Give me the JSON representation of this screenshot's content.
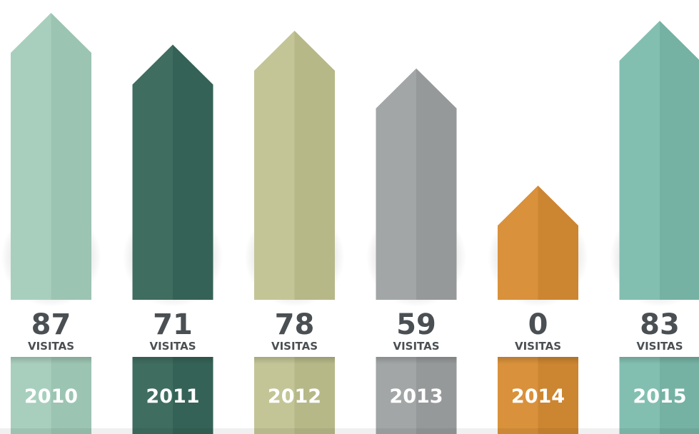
{
  "chart_data": {
    "type": "bar",
    "title": "",
    "categories": [
      "2010",
      "2011",
      "2012",
      "2013",
      "2014",
      "2015"
    ],
    "values": [
      87,
      71,
      78,
      59,
      0,
      83
    ],
    "value_labels": [
      "87",
      "71",
      "78",
      "59",
      "0",
      "83"
    ],
    "unit_label": "VISITAS",
    "colors": [
      "#a8cfbe",
      "#3f6d60",
      "#c3c596",
      "#a2a6a6",
      "#d9913b",
      "#82bfb0"
    ],
    "colors_dark": [
      "#9cc4b2",
      "#356256",
      "#b6b888",
      "#96999a",
      "#cc8530",
      "#75b2a3"
    ],
    "legend": "none",
    "grid": false
  }
}
